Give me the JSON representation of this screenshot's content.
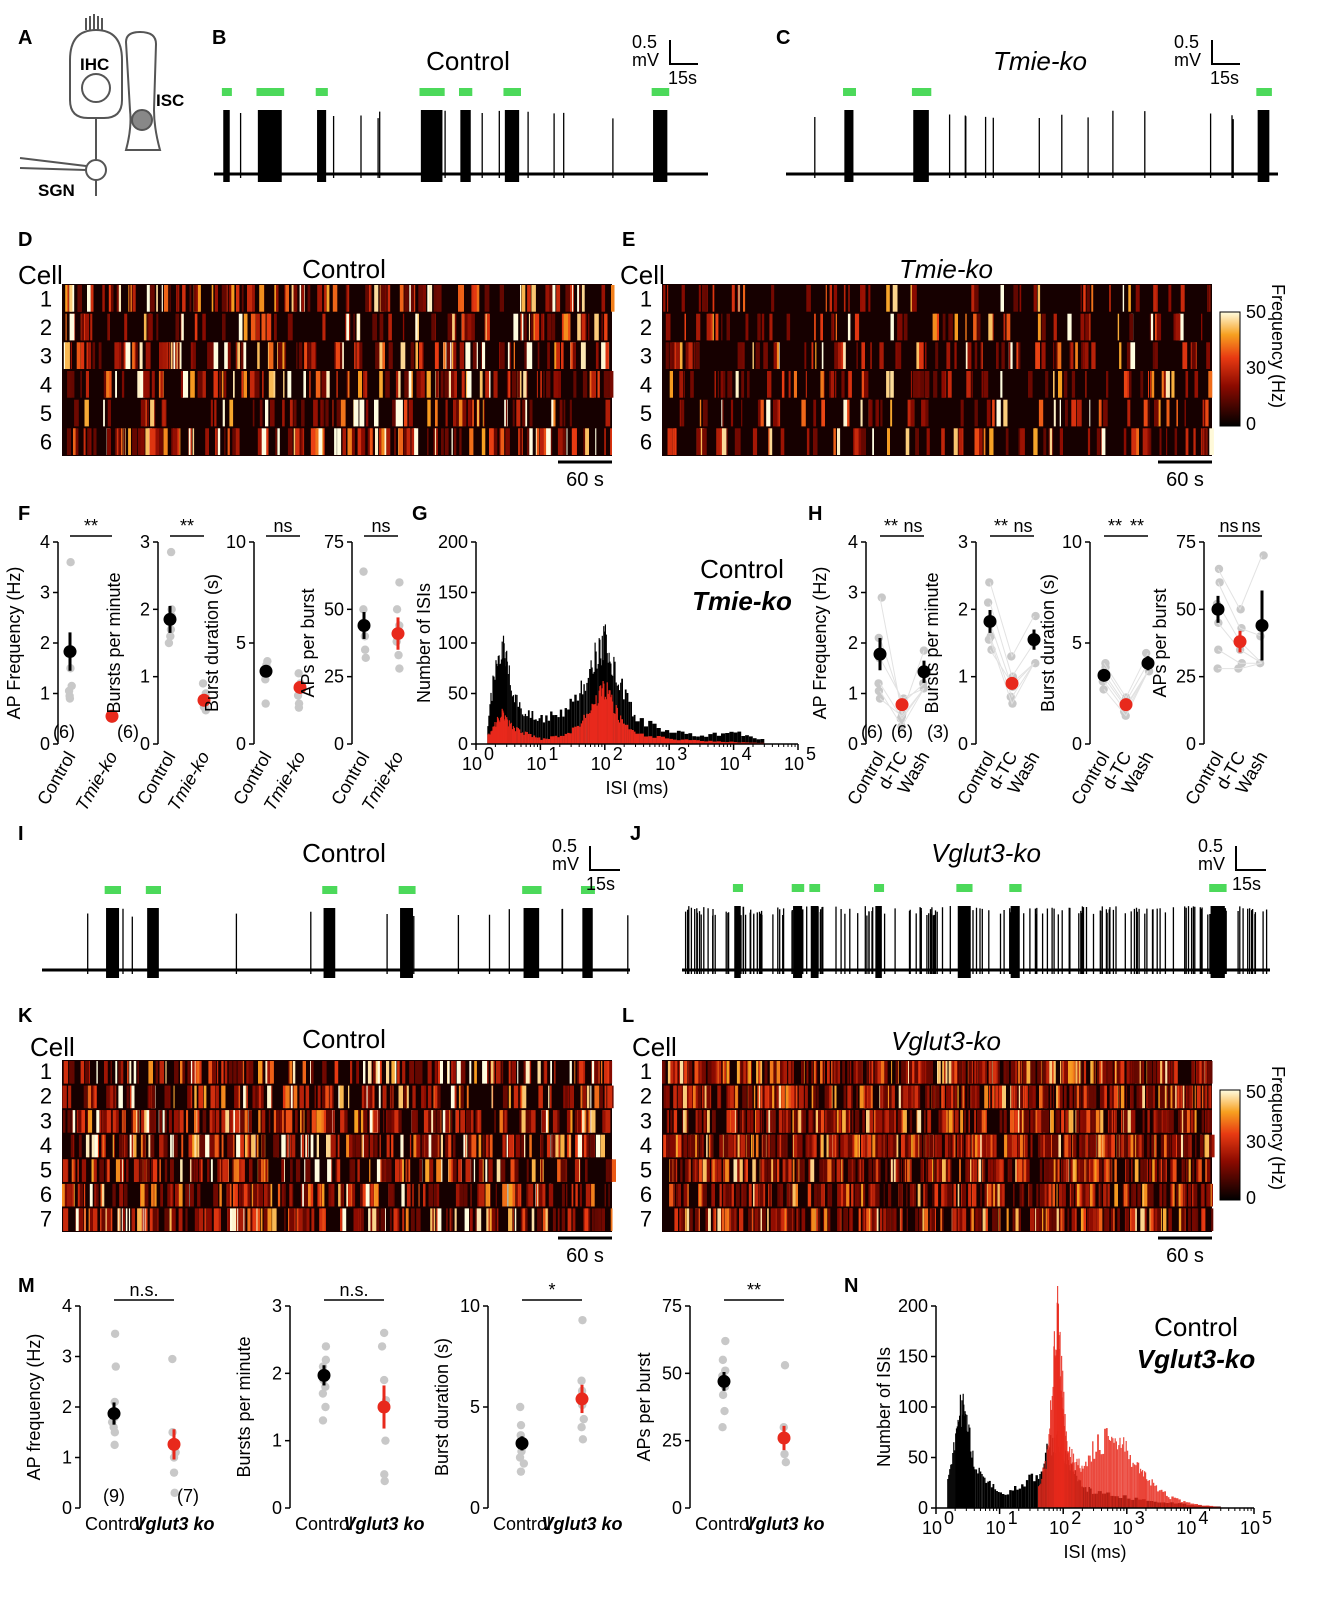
{
  "colors": {
    "control": "#000000",
    "ko": "#e8291c",
    "burst": "#4cd95a",
    "indiv": "#c8c8c8"
  },
  "panels": {
    "A": "A",
    "B": "B",
    "C": "C",
    "D": "D",
    "E": "E",
    "F": "F",
    "G": "G",
    "H": "H",
    "I": "I",
    "J": "J",
    "K": "K",
    "L": "L",
    "M": "M",
    "N": "N"
  },
  "schematic": {
    "ihc": "IHC",
    "isc": "ISC",
    "sgn": "SGN"
  },
  "traces": {
    "B": {
      "title": "Control",
      "scale_v": "0.5",
      "scale_unit": "mV",
      "scale_t": "15s",
      "bursts": [
        0.02,
        0.09,
        0.12,
        0.21,
        0.42,
        0.44,
        0.5,
        0.59,
        0.89
      ]
    },
    "C": {
      "title": "Tmie-ko",
      "scale_v": "0.5",
      "scale_unit": "mV",
      "scale_t": "15s",
      "bursts": [
        0.12,
        0.26,
        0.96
      ]
    },
    "I": {
      "title": "Control",
      "scale_v": "0.5",
      "scale_unit": "mV",
      "scale_t": "15s",
      "bursts": [
        0.11,
        0.18,
        0.48,
        0.61,
        0.82,
        0.92
      ]
    },
    "J": {
      "title": "Vglut3-ko",
      "scale_v": "0.5",
      "scale_unit": "mV",
      "scale_t": "15s",
      "bursts": [
        0.09,
        0.19,
        0.22,
        0.33,
        0.47,
        0.56,
        0.9
      ]
    }
  },
  "rasters": {
    "D": {
      "title": "Control",
      "cell_label": "Cell",
      "cells": [
        "1",
        "2",
        "3",
        "4",
        "5",
        "6"
      ],
      "scalebar": "60 s"
    },
    "E": {
      "title": "Tmie-ko",
      "cell_label": "Cell",
      "cells": [
        "1",
        "2",
        "3",
        "4",
        "5",
        "6"
      ],
      "scalebar": "60 s",
      "colorbar": {
        "label": "Frequency (Hz)",
        "ticks": [
          "50",
          "30",
          "0"
        ]
      }
    },
    "K": {
      "title": "Control",
      "cell_label": "Cell",
      "cells": [
        "1",
        "2",
        "3",
        "4",
        "5",
        "6",
        "7"
      ],
      "scalebar": "60 s"
    },
    "L": {
      "title": "Vglut3-ko",
      "cell_label": "Cell",
      "cells": [
        "1",
        "2",
        "3",
        "4",
        "5",
        "6",
        "7"
      ],
      "scalebar": "60 s",
      "colorbar": {
        "label": "Frequency (Hz)",
        "ticks": [
          "50",
          "30",
          "0"
        ]
      }
    }
  },
  "chart_data": [
    {
      "panel": "F1",
      "type": "scatter",
      "ylabel": "AP Frequency (Hz)",
      "ylim": [
        0,
        4
      ],
      "yticks": [
        "0",
        "1",
        "2",
        "3",
        "4"
      ],
      "categories": [
        "Control",
        "Tmie-ko"
      ],
      "means": [
        1.83,
        0.55
      ],
      "errors": [
        0.38,
        0.06
      ],
      "points": [
        [
          3.6,
          1.5,
          1.15,
          1.05,
          0.9,
          0.95
        ],
        [
          0.6,
          0.58,
          0.55,
          0.5,
          0.52,
          0.56
        ]
      ],
      "sig": "**",
      "n": [
        "(6)",
        "(6)"
      ]
    },
    {
      "panel": "F2",
      "type": "scatter",
      "ylabel": "Bursts per minute",
      "ylim": [
        0,
        3
      ],
      "yticks": [
        "0",
        "1",
        "2",
        "3"
      ],
      "categories": [
        "Control",
        "Tmie-ko"
      ],
      "means": [
        1.85,
        0.65
      ],
      "errors": [
        0.2,
        0.07
      ],
      "points": [
        [
          2.85,
          2.0,
          1.9,
          1.7,
          1.6,
          1.5
        ],
        [
          0.9,
          0.75,
          0.62,
          0.55,
          0.5,
          0.55
        ]
      ],
      "sig": "**"
    },
    {
      "panel": "F3",
      "type": "scatter",
      "ylabel": "Burst duration (s)",
      "ylim": [
        0,
        10
      ],
      "yticks": [
        "0",
        "5",
        "10"
      ],
      "categories": [
        "Control",
        "Tmie-ko"
      ],
      "means": [
        3.6,
        2.8
      ],
      "errors": [
        0.25,
        0.3
      ],
      "points": [
        [
          4.1,
          3.9,
          3.7,
          3.5,
          3.2,
          2.0
        ],
        [
          3.5,
          3.0,
          2.7,
          2.4,
          2.0,
          1.8
        ]
      ],
      "sig": "ns"
    },
    {
      "panel": "F4",
      "type": "scatter",
      "ylabel": "APs per burst",
      "ylim": [
        0,
        75
      ],
      "yticks": [
        "0",
        "25",
        "50",
        "75"
      ],
      "categories": [
        "Control",
        "Tmie-ko"
      ],
      "means": [
        44,
        41
      ],
      "errors": [
        5,
        6
      ],
      "points": [
        [
          64,
          50,
          45,
          40,
          35,
          32
        ],
        [
          60,
          50,
          44,
          38,
          33,
          28
        ]
      ],
      "sig": "ns"
    },
    {
      "panel": "G",
      "type": "bar",
      "ylabel": "Number of ISIs",
      "xlabel": "ISI (ms)",
      "ylim": [
        0,
        200
      ],
      "yticks": [
        "0",
        "50",
        "100",
        "150",
        "200"
      ],
      "xscale": "log",
      "xlim": [
        1,
        100000
      ],
      "legend": [
        "Control",
        "Tmie-ko"
      ],
      "series": [
        {
          "name": "Control",
          "x": [
            1.5,
            2,
            2.5,
            3,
            4,
            6,
            10,
            20,
            40,
            60,
            80,
            100,
            130,
            180,
            300,
            1000,
            3000,
            10000,
            30000
          ],
          "y": [
            20,
            80,
            95,
            75,
            45,
            30,
            25,
            30,
            50,
            80,
            95,
            100,
            80,
            55,
            25,
            12,
            8,
            12,
            3
          ]
        },
        {
          "name": "Tmie-ko",
          "x": [
            1.5,
            2,
            2.5,
            3,
            4,
            6,
            10,
            20,
            40,
            60,
            80,
            100,
            130,
            180,
            300,
            1000,
            3000,
            10000,
            30000
          ],
          "y": [
            8,
            20,
            30,
            22,
            15,
            10,
            5,
            8,
            18,
            35,
            48,
            55,
            40,
            22,
            10,
            5,
            3,
            2,
            1
          ]
        }
      ]
    },
    {
      "panel": "H1",
      "type": "scatter",
      "ylabel": "AP Frequency (Hz)",
      "ylim": [
        0,
        4
      ],
      "yticks": [
        "0",
        "1",
        "2",
        "3",
        "4"
      ],
      "categories": [
        "Control",
        "d-TC",
        "Wash"
      ],
      "means": [
        1.78,
        0.78,
        1.43
      ],
      "errors": [
        0.32,
        0.12,
        0.22
      ],
      "points": [
        [
          2.9,
          2.1,
          1.7,
          1.2,
          1.05,
          0.9
        ],
        [
          0.6,
          0.8,
          0.9,
          0.5,
          0.35,
          0.55
        ],
        [
          1.85,
          1.2,
          1.1
        ]
      ],
      "sig": [
        "**",
        "ns"
      ],
      "n": [
        "(6)",
        "(6)",
        "(3)"
      ]
    },
    {
      "panel": "H2",
      "type": "scatter",
      "ylabel": "Bursts per minute",
      "ylim": [
        0,
        3
      ],
      "yticks": [
        "0",
        "1",
        "2",
        "3"
      ],
      "categories": [
        "Control",
        "d-TC",
        "Wash"
      ],
      "means": [
        1.82,
        0.9,
        1.55
      ],
      "errors": [
        0.17,
        0.08,
        0.15
      ],
      "points": [
        [
          2.4,
          2.1,
          1.8,
          1.6,
          1.55,
          1.4
        ],
        [
          1.3,
          1.0,
          0.85,
          0.7,
          0.6,
          0.9
        ],
        [
          1.9,
          1.5,
          1.2
        ]
      ],
      "sig": [
        "**",
        "ns"
      ]
    },
    {
      "panel": "H3",
      "type": "scatter",
      "ylabel": "Burst duration (s)",
      "ylim": [
        0,
        10
      ],
      "yticks": [
        "0",
        "5",
        "10"
      ],
      "categories": [
        "Control",
        "d-TC",
        "Wash"
      ],
      "means": [
        3.4,
        1.95,
        4.0
      ],
      "errors": [
        0.25,
        0.2,
        0.35
      ],
      "points": [
        [
          4.0,
          3.8,
          3.5,
          3.3,
          3.1,
          2.7
        ],
        [
          2.3,
          2.1,
          1.9,
          1.8,
          1.6,
          1.4
        ],
        [
          4.5,
          4.0,
          3.6
        ]
      ],
      "sig": [
        "**",
        "**"
      ]
    },
    {
      "panel": "H4",
      "type": "scatter",
      "ylabel": "APs per burst",
      "ylim": [
        0,
        75
      ],
      "yticks": [
        "0",
        "25",
        "50",
        "75"
      ],
      "categories": [
        "Control",
        "d-TC",
        "Wash"
      ],
      "means": [
        50,
        38,
        44
      ],
      "errors": [
        5,
        4,
        13
      ],
      "points": [
        [
          65,
          60,
          52,
          45,
          35,
          28
        ],
        [
          50,
          43,
          38,
          35,
          30,
          28
        ],
        [
          70,
          40,
          30
        ]
      ],
      "sig": [
        "ns",
        "ns"
      ]
    },
    {
      "panel": "M1",
      "type": "scatter",
      "ylabel": "AP frequency (Hz)",
      "ylim": [
        0,
        4
      ],
      "yticks": [
        "0",
        "1",
        "2",
        "3",
        "4"
      ],
      "categories": [
        "Control",
        "Vglut3 ko"
      ],
      "means": [
        1.87,
        1.26
      ],
      "errors": [
        0.22,
        0.3
      ],
      "points": [
        [
          3.45,
          2.8,
          2.1,
          1.9,
          1.8,
          1.7,
          1.6,
          1.5,
          1.25
        ],
        [
          2.95,
          1.5,
          1.1,
          1.0,
          0.7,
          0.3,
          1.2
        ]
      ],
      "sig": "n.s.",
      "n": [
        "(9)",
        "(7)"
      ]
    },
    {
      "panel": "M2",
      "type": "scatter",
      "ylabel": "Bursts per minute",
      "ylim": [
        0,
        3
      ],
      "yticks": [
        "0",
        "1",
        "2",
        "3"
      ],
      "categories": [
        "Control",
        "Vglut3 ko"
      ],
      "means": [
        1.97,
        1.5
      ],
      "errors": [
        0.15,
        0.32
      ],
      "points": [
        [
          2.4,
          2.2,
          2.1,
          2.0,
          1.9,
          1.8,
          1.7,
          1.5,
          1.3
        ],
        [
          2.6,
          2.4,
          1.9,
          1.6,
          1.0,
          0.5,
          0.4
        ]
      ],
      "sig": "n.s."
    },
    {
      "panel": "M3",
      "type": "scatter",
      "ylabel": "Burst duration (s)",
      "ylim": [
        0,
        10
      ],
      "yticks": [
        "0",
        "5",
        "10"
      ],
      "categories": [
        "Control",
        "Vglut3 ko"
      ],
      "means": [
        3.2,
        5.4
      ],
      "errors": [
        0.35,
        0.7
      ],
      "points": [
        [
          5.0,
          4.1,
          3.6,
          3.3,
          3.0,
          2.8,
          2.5,
          2.2,
          1.8
        ],
        [
          9.3,
          6.3,
          5.8,
          5.1,
          4.4,
          4.0,
          3.4
        ]
      ],
      "sig": "*"
    },
    {
      "panel": "M4",
      "type": "scatter",
      "ylabel": "APs per burst",
      "ylim": [
        0,
        75
      ],
      "yticks": [
        "0",
        "25",
        "50",
        "75"
      ],
      "categories": [
        "Control",
        "Vglut3 ko"
      ],
      "means": [
        47,
        26
      ],
      "errors": [
        3.5,
        4.5
      ],
      "points": [
        [
          62,
          55,
          51,
          49,
          47,
          45,
          42,
          36,
          30
        ],
        [
          53,
          30,
          26,
          20,
          17
        ]
      ],
      "sig": "**"
    },
    {
      "panel": "N",
      "type": "bar",
      "ylabel": "Number of ISIs",
      "xlabel": "ISI (ms)",
      "ylim": [
        0,
        200
      ],
      "yticks": [
        "0",
        "50",
        "100",
        "150",
        "200"
      ],
      "xscale": "log",
      "xlim": [
        1,
        100000
      ],
      "legend": [
        "Control",
        "Vglut3-ko"
      ],
      "series": [
        {
          "name": "Control",
          "x": [
            1.5,
            2,
            2.5,
            3,
            4,
            6,
            10,
            20,
            40,
            60,
            80,
            100,
            130,
            180,
            300,
            1000,
            3000,
            10000,
            30000
          ],
          "y": [
            30,
            75,
            100,
            80,
            45,
            25,
            15,
            20,
            35,
            60,
            65,
            55,
            40,
            25,
            15,
            10,
            6,
            3,
            1
          ]
        },
        {
          "name": "Vglut3-ko",
          "x": [
            40,
            55,
            70,
            80,
            90,
            100,
            120,
            150,
            200,
            300,
            500,
            700,
            1000,
            1500,
            2000,
            3000,
            5000,
            10000,
            30000
          ],
          "y": [
            20,
            50,
            160,
            185,
            140,
            100,
            60,
            40,
            45,
            60,
            70,
            65,
            55,
            40,
            30,
            18,
            10,
            4,
            1
          ]
        }
      ]
    }
  ],
  "xlabels_log": [
    "10",
    "10",
    "10",
    "10",
    "10",
    "10"
  ],
  "xlabels_exp": [
    "0",
    "1",
    "2",
    "3",
    "4",
    "5"
  ]
}
